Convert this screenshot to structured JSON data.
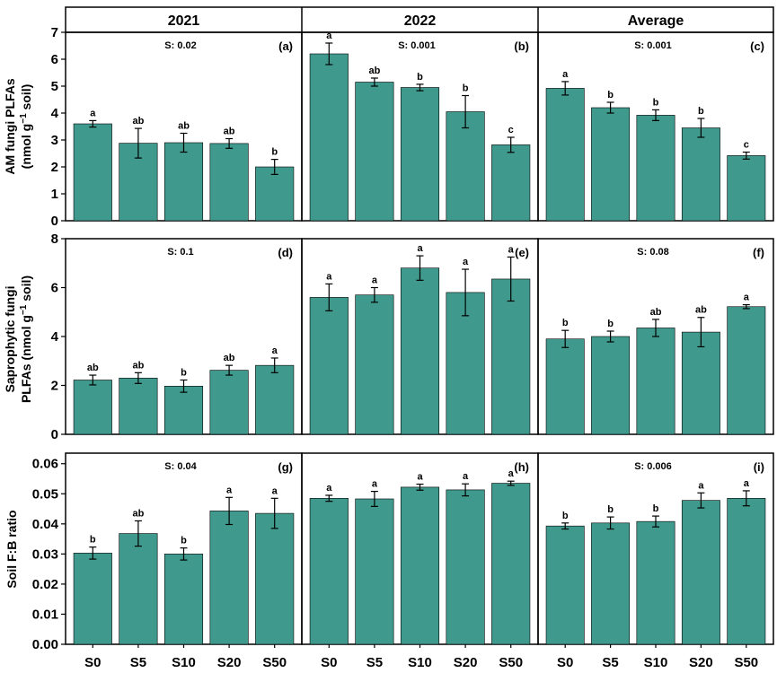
{
  "figure": {
    "columns": [
      "2021",
      "2022",
      "Average"
    ],
    "rows": [
      {
        "ylabel_line1": "AM fungi PLFAs",
        "ylabel_line2_pre": "(nmol g",
        "ylabel_line2_sup": "−1",
        "ylabel_line2_post": " soil)"
      },
      {
        "ylabel_line1": "Saprophytic fungi",
        "ylabel_line2_pre": "PLFAs (nmol g",
        "ylabel_line2_sup": "−1",
        "ylabel_line2_post": " soil)"
      },
      {
        "ylabel_line1": "Soil F:B ratio",
        "ylabel_line2_pre": "",
        "ylabel_line2_sup": "",
        "ylabel_line2_post": ""
      }
    ],
    "colors": {
      "bar": "#3f9a8d",
      "bar_edge": "#000000",
      "axis": "#000000"
    }
  },
  "chart_data": [
    {
      "panel": "(a)",
      "type": "bar",
      "row": 0,
      "col": 0,
      "stat": "S: 0.02",
      "categories": [
        "S0",
        "S5",
        "S10",
        "S20",
        "S50"
      ],
      "values": [
        3.6,
        2.88,
        2.9,
        2.87,
        2.0
      ],
      "errors": [
        0.12,
        0.55,
        0.35,
        0.18,
        0.28
      ],
      "letters": [
        "a",
        "ab",
        "ab",
        "ab",
        "b"
      ],
      "ylim": [
        0,
        7
      ],
      "yticks": [
        "0",
        "1",
        "2",
        "3",
        "4",
        "5",
        "6",
        "7"
      ]
    },
    {
      "panel": "(b)",
      "type": "bar",
      "row": 0,
      "col": 1,
      "stat": "S: 0.001",
      "categories": [
        "S0",
        "S5",
        "S10",
        "S20",
        "S50"
      ],
      "values": [
        6.2,
        5.15,
        4.95,
        4.05,
        2.82
      ],
      "errors": [
        0.4,
        0.15,
        0.12,
        0.6,
        0.28
      ],
      "letters": [
        "a",
        "ab",
        "b",
        "b",
        "c"
      ],
      "ylim": [
        0,
        7
      ],
      "yticks": []
    },
    {
      "panel": "(c)",
      "type": "bar",
      "row": 0,
      "col": 2,
      "stat": "S: 0.001",
      "categories": [
        "S0",
        "S5",
        "S10",
        "S20",
        "S50"
      ],
      "values": [
        4.92,
        4.2,
        3.92,
        3.45,
        2.42
      ],
      "errors": [
        0.25,
        0.2,
        0.2,
        0.35,
        0.13
      ],
      "letters": [
        "a",
        "b",
        "b",
        "b",
        "c"
      ],
      "ylim": [
        0,
        7
      ],
      "yticks": []
    },
    {
      "panel": "(d)",
      "type": "bar",
      "row": 1,
      "col": 0,
      "stat": "S: 0.1",
      "categories": [
        "S0",
        "S5",
        "S10",
        "S20",
        "S50"
      ],
      "values": [
        2.22,
        2.3,
        1.97,
        2.62,
        2.82
      ],
      "errors": [
        0.2,
        0.22,
        0.25,
        0.2,
        0.3
      ],
      "letters": [
        "ab",
        "ab",
        "b",
        "ab",
        "a"
      ],
      "ylim": [
        0,
        8
      ],
      "yticks": [
        "0",
        "2",
        "4",
        "6",
        "8"
      ]
    },
    {
      "panel": "(e)",
      "type": "bar",
      "row": 1,
      "col": 1,
      "stat": "",
      "categories": [
        "S0",
        "S5",
        "S10",
        "S20",
        "S50"
      ],
      "values": [
        5.6,
        5.7,
        6.8,
        5.8,
        6.35
      ],
      "errors": [
        0.55,
        0.3,
        0.5,
        0.95,
        0.9
      ],
      "letters": [
        "a",
        "a",
        "a",
        "a",
        "a"
      ],
      "ylim": [
        0,
        8
      ],
      "yticks": []
    },
    {
      "panel": "(f)",
      "type": "bar",
      "row": 1,
      "col": 2,
      "stat": "S: 0.08",
      "categories": [
        "S0",
        "S5",
        "S10",
        "S20",
        "S50"
      ],
      "values": [
        3.9,
        4.0,
        4.35,
        4.18,
        5.22
      ],
      "errors": [
        0.35,
        0.22,
        0.35,
        0.6,
        0.08
      ],
      "letters": [
        "b",
        "b",
        "ab",
        "ab",
        "a"
      ],
      "ylim": [
        0,
        8
      ],
      "yticks": []
    },
    {
      "panel": "(g)",
      "type": "bar",
      "row": 2,
      "col": 0,
      "stat": "S: 0.04",
      "categories": [
        "S0",
        "S5",
        "S10",
        "S20",
        "S50"
      ],
      "values": [
        0.0303,
        0.0368,
        0.03,
        0.0443,
        0.0435
      ],
      "errors": [
        0.002,
        0.0042,
        0.002,
        0.0045,
        0.005
      ],
      "letters": [
        "b",
        "ab",
        "b",
        "a",
        "a"
      ],
      "ylim": [
        0,
        0.0635
      ],
      "yticks": [
        "0.00",
        "0.01",
        "0.02",
        "0.03",
        "0.04",
        "0.05",
        "0.06"
      ]
    },
    {
      "panel": "(h)",
      "type": "bar",
      "row": 2,
      "col": 1,
      "stat": "",
      "categories": [
        "S0",
        "S5",
        "S10",
        "S20",
        "S50"
      ],
      "values": [
        0.0485,
        0.0483,
        0.0522,
        0.0513,
        0.0535
      ],
      "errors": [
        0.001,
        0.0025,
        0.001,
        0.002,
        0.0007
      ],
      "letters": [
        "a",
        "a",
        "a",
        "a",
        "a"
      ],
      "ylim": [
        0,
        0.0635
      ],
      "yticks": []
    },
    {
      "panel": "(i)",
      "type": "bar",
      "row": 2,
      "col": 2,
      "stat": "S: 0.006",
      "categories": [
        "S0",
        "S5",
        "S10",
        "S20",
        "S50"
      ],
      "values": [
        0.0393,
        0.0403,
        0.0408,
        0.0478,
        0.0485
      ],
      "errors": [
        0.001,
        0.002,
        0.0018,
        0.0025,
        0.0025
      ],
      "letters": [
        "b",
        "b",
        "b",
        "a",
        "a"
      ],
      "ylim": [
        0,
        0.0635
      ],
      "yticks": []
    }
  ]
}
